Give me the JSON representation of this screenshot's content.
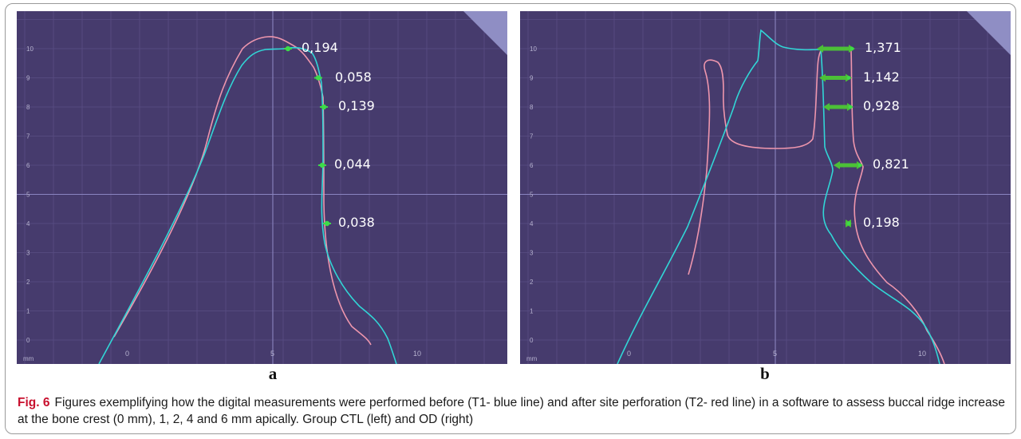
{
  "caption": {
    "label": "Fig. 6",
    "text": "Figures exemplifying how the digital measurements were performed before (T1- blue line) and after site perforation (T2- red line) in a software to assess buccal ridge increase at the bone crest (0 mm), 1, 2, 4 and 6 mm apically. Group CTL (left) and OD (right)"
  },
  "colors": {
    "plot_background": "#463b6d",
    "t1_line": "#31d6d6",
    "t2_line": "#ee96ad",
    "marker": "#3ddc49",
    "arrow": "#4cc037"
  },
  "axis": {
    "unit_label": "mm",
    "y_ticks": [
      "0",
      "1",
      "2",
      "3",
      "4",
      "5",
      "6",
      "7",
      "8",
      "9",
      "10"
    ],
    "x_ticks": [
      "0",
      "5",
      "10"
    ]
  },
  "panels": [
    {
      "letter": "a",
      "group": "CTL",
      "measurements": [
        {
          "level": 10,
          "value": "0,194"
        },
        {
          "level": 9,
          "value": "0,058"
        },
        {
          "level": 8,
          "value": "0,139"
        },
        {
          "level": 6,
          "value": "0,044"
        },
        {
          "level": 4,
          "value": "0,038"
        }
      ]
    },
    {
      "letter": "b",
      "group": "OD",
      "measurements": [
        {
          "level": 10,
          "value": "1,371"
        },
        {
          "level": 9,
          "value": "1,142"
        },
        {
          "level": 8,
          "value": "0,928"
        },
        {
          "level": 6,
          "value": "0,821"
        },
        {
          "level": 4,
          "value": "0,198"
        }
      ]
    }
  ]
}
